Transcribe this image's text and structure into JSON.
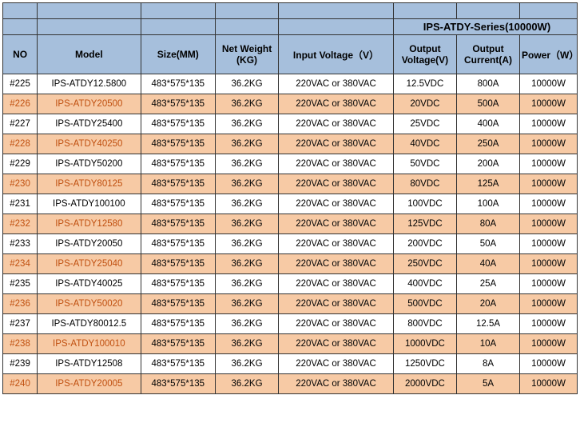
{
  "series_title": "IPS-ATDY-Series(10000W)",
  "colors": {
    "header_bg": "#a6bfdc",
    "row_odd_bg": "#ffffff",
    "row_even_bg": "#f7caa5",
    "even_accent_text": "#c05010",
    "border": "#333333"
  },
  "columns": [
    {
      "key": "no",
      "label": "NO"
    },
    {
      "key": "model",
      "label": "Model"
    },
    {
      "key": "size",
      "label": "Size(MM)"
    },
    {
      "key": "weight",
      "label": "Net Weight (KG)"
    },
    {
      "key": "input_v",
      "label": "Input Voltage（V）"
    },
    {
      "key": "out_v",
      "label": "Output Voltage(V)"
    },
    {
      "key": "out_c",
      "label": "Output Current(A)"
    },
    {
      "key": "power",
      "label": "Power（W）"
    }
  ],
  "rows": [
    {
      "no": "#225",
      "model": "IPS-ATDY12.5800",
      "size": "483*575*135",
      "weight": "36.2KG",
      "input_v": "220VAC or 380VAC",
      "out_v": "12.5VDC",
      "out_c": "800A",
      "power": "10000W"
    },
    {
      "no": "#226",
      "model": "IPS-ATDY20500",
      "size": "483*575*135",
      "weight": "36.2KG",
      "input_v": "220VAC or 380VAC",
      "out_v": "20VDC",
      "out_c": "500A",
      "power": "10000W"
    },
    {
      "no": "#227",
      "model": "IPS-ATDY25400",
      "size": "483*575*135",
      "weight": "36.2KG",
      "input_v": "220VAC or 380VAC",
      "out_v": "25VDC",
      "out_c": "400A",
      "power": "10000W"
    },
    {
      "no": "#228",
      "model": "IPS-ATDY40250",
      "size": "483*575*135",
      "weight": "36.2KG",
      "input_v": "220VAC or 380VAC",
      "out_v": "40VDC",
      "out_c": "250A",
      "power": "10000W"
    },
    {
      "no": "#229",
      "model": "IPS-ATDY50200",
      "size": "483*575*135",
      "weight": "36.2KG",
      "input_v": "220VAC or 380VAC",
      "out_v": "50VDC",
      "out_c": "200A",
      "power": "10000W"
    },
    {
      "no": "#230",
      "model": "IPS-ATDY80125",
      "size": "483*575*135",
      "weight": "36.2KG",
      "input_v": "220VAC or 380VAC",
      "out_v": "80VDC",
      "out_c": "125A",
      "power": "10000W"
    },
    {
      "no": "#231",
      "model": "IPS-ATDY100100",
      "size": "483*575*135",
      "weight": "36.2KG",
      "input_v": "220VAC or 380VAC",
      "out_v": "100VDC",
      "out_c": "100A",
      "power": "10000W"
    },
    {
      "no": "#232",
      "model": "IPS-ATDY12580",
      "size": "483*575*135",
      "weight": "36.2KG",
      "input_v": "220VAC or 380VAC",
      "out_v": "125VDC",
      "out_c": "80A",
      "power": "10000W"
    },
    {
      "no": "#233",
      "model": "IPS-ATDY20050",
      "size": "483*575*135",
      "weight": "36.2KG",
      "input_v": "220VAC or 380VAC",
      "out_v": "200VDC",
      "out_c": "50A",
      "power": "10000W"
    },
    {
      "no": "#234",
      "model": "IPS-ATDY25040",
      "size": "483*575*135",
      "weight": "36.2KG",
      "input_v": "220VAC or 380VAC",
      "out_v": "250VDC",
      "out_c": "40A",
      "power": "10000W"
    },
    {
      "no": "#235",
      "model": "IPS-ATDY40025",
      "size": "483*575*135",
      "weight": "36.2KG",
      "input_v": "220VAC or 380VAC",
      "out_v": "400VDC",
      "out_c": "25A",
      "power": "10000W"
    },
    {
      "no": "#236",
      "model": "IPS-ATDY50020",
      "size": "483*575*135",
      "weight": "36.2KG",
      "input_v": "220VAC or 380VAC",
      "out_v": "500VDC",
      "out_c": "20A",
      "power": "10000W"
    },
    {
      "no": "#237",
      "model": "IPS-ATDY80012.5",
      "size": "483*575*135",
      "weight": "36.2KG",
      "input_v": "220VAC or 380VAC",
      "out_v": "800VDC",
      "out_c": "12.5A",
      "power": "10000W"
    },
    {
      "no": "#238",
      "model": "IPS-ATDY100010",
      "size": "483*575*135",
      "weight": "36.2KG",
      "input_v": "220VAC or 380VAC",
      "out_v": "1000VDC",
      "out_c": "10A",
      "power": "10000W"
    },
    {
      "no": "#239",
      "model": "IPS-ATDY12508",
      "size": "483*575*135",
      "weight": "36.2KG",
      "input_v": "220VAC or 380VAC",
      "out_v": "1250VDC",
      "out_c": "8A",
      "power": "10000W"
    },
    {
      "no": "#240",
      "model": "IPS-ATDY20005",
      "size": "483*575*135",
      "weight": "36.2KG",
      "input_v": "220VAC or 380VAC",
      "out_v": "2000VDC",
      "out_c": "5A",
      "power": "10000W"
    }
  ]
}
